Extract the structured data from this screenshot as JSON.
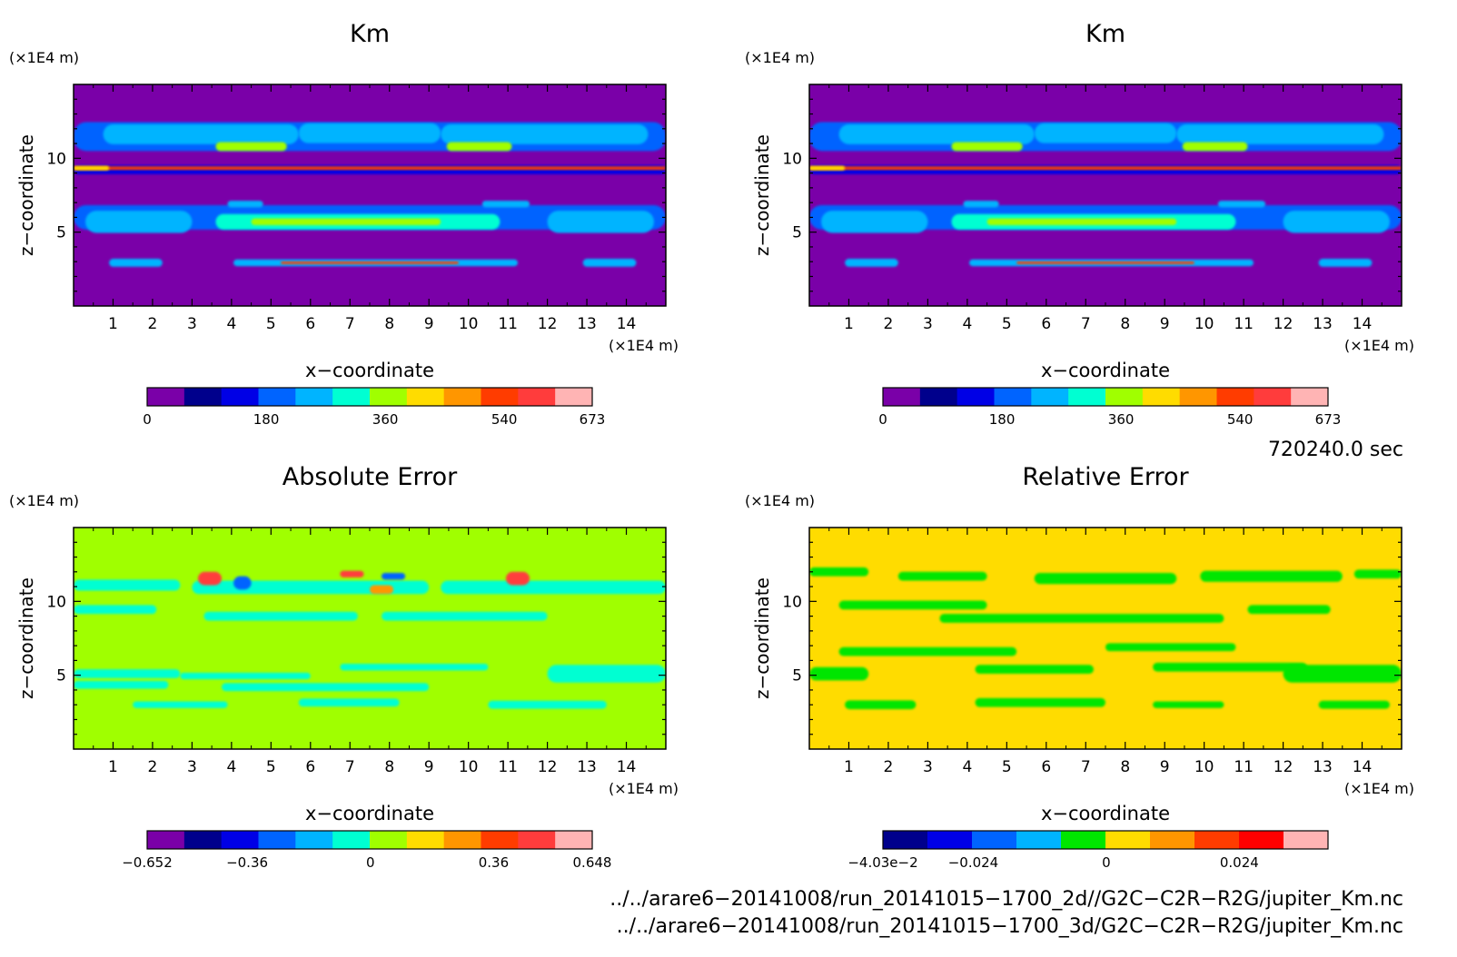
{
  "chart_data": [
    {
      "type": "heatmap",
      "title": "Km",
      "xlabel": "x−coordinate",
      "ylabel": "z−coordinate",
      "x_unit": "(×1E4 m)",
      "y_unit": "(×1E4 m)",
      "xlim": [
        0,
        15
      ],
      "ylim": [
        0,
        15
      ],
      "x_ticks": [
        "1",
        "2",
        "3",
        "4",
        "5",
        "6",
        "7",
        "8",
        "9",
        "10",
        "11",
        "12",
        "13",
        "14"
      ],
      "y_ticks": [
        "5",
        "10"
      ],
      "colorbar": {
        "colors": [
          "#7a00a8",
          "#00008c",
          "#0000e6",
          "#0064ff",
          "#00b4ff",
          "#00ffd2",
          "#a0ff00",
          "#ffdc00",
          "#ff9600",
          "#ff3c00",
          "#ff3c3c",
          "#ffb4b4"
        ],
        "tick_labels": [
          "0",
          "180",
          "360",
          "540",
          "673"
        ],
        "tick_values": [
          0,
          180,
          360,
          540,
          673
        ],
        "range": [
          0,
          673
        ]
      },
      "background_color": "#7a00a8",
      "field": "km"
    },
    {
      "type": "heatmap",
      "title": "Km",
      "xlabel": "x−coordinate",
      "ylabel": "z−coordinate",
      "x_unit": "(×1E4 m)",
      "y_unit": "(×1E4 m)",
      "xlim": [
        0,
        15
      ],
      "ylim": [
        0,
        15
      ],
      "x_ticks": [
        "1",
        "2",
        "3",
        "4",
        "5",
        "6",
        "7",
        "8",
        "9",
        "10",
        "11",
        "12",
        "13",
        "14"
      ],
      "y_ticks": [
        "5",
        "10"
      ],
      "colorbar": {
        "colors": [
          "#7a00a8",
          "#00008c",
          "#0000e6",
          "#0064ff",
          "#00b4ff",
          "#00ffd2",
          "#a0ff00",
          "#ffdc00",
          "#ff9600",
          "#ff3c00",
          "#ff3c3c",
          "#ffb4b4"
        ],
        "tick_labels": [
          "0",
          "180",
          "360",
          "540",
          "673"
        ],
        "tick_values": [
          0,
          180,
          360,
          540,
          673
        ],
        "range": [
          0,
          673
        ]
      },
      "background_color": "#7a00a8",
      "field": "km"
    },
    {
      "type": "heatmap",
      "title": "Absolute Error",
      "xlabel": "x−coordinate",
      "ylabel": "z−coordinate",
      "x_unit": "(×1E4 m)",
      "y_unit": "(×1E4 m)",
      "xlim": [
        0,
        15
      ],
      "ylim": [
        0,
        15
      ],
      "x_ticks": [
        "1",
        "2",
        "3",
        "4",
        "5",
        "6",
        "7",
        "8",
        "9",
        "10",
        "11",
        "12",
        "13",
        "14"
      ],
      "y_ticks": [
        "5",
        "10"
      ],
      "colorbar": {
        "colors": [
          "#7a00a8",
          "#00008c",
          "#0000e6",
          "#0064ff",
          "#00b4ff",
          "#00ffd2",
          "#a0ff00",
          "#ffdc00",
          "#ff9600",
          "#ff3c00",
          "#ff3c3c",
          "#ffb4b4"
        ],
        "tick_labels": [
          "−0.652",
          "−0.36",
          "0",
          "0.36",
          "0.648"
        ],
        "tick_values": [
          -0.652,
          -0.36,
          0,
          0.36,
          0.648
        ],
        "range": [
          -0.652,
          0.648
        ]
      },
      "background_color": "#a0ff00",
      "field": "abs"
    },
    {
      "type": "heatmap",
      "title": "Relative Error",
      "xlabel": "x−coordinate",
      "ylabel": "z−coordinate",
      "x_unit": "(×1E4 m)",
      "y_unit": "(×1E4 m)",
      "xlim": [
        0,
        15
      ],
      "ylim": [
        0,
        15
      ],
      "x_ticks": [
        "1",
        "2",
        "3",
        "4",
        "5",
        "6",
        "7",
        "8",
        "9",
        "10",
        "11",
        "12",
        "13",
        "14"
      ],
      "y_ticks": [
        "5",
        "10"
      ],
      "colorbar": {
        "colors": [
          "#00008c",
          "#0000e6",
          "#0064ff",
          "#00b4ff",
          "#00e600",
          "#ffdc00",
          "#ff9600",
          "#ff3c00",
          "#ff0000",
          "#ffb4b4"
        ],
        "tick_labels": [
          "−4.03e−2",
          "−0.024",
          "0",
          "0.024"
        ],
        "tick_values": [
          -0.0403,
          -0.024,
          0,
          0.024
        ],
        "range": [
          -0.0403,
          0.04
        ]
      },
      "background_color": "#ffdc00",
      "field": "rel"
    }
  ],
  "time_label": "720240.0 sec",
  "file_paths": [
    "../../arare6−20141008/run_20141015−1700_2d//G2C−C2R−R2G/jupiter_Km.nc",
    "../../arare6−20141008/run_20141015−1700_3d/G2C−C2R−R2G/jupiter_Km.nc"
  ]
}
